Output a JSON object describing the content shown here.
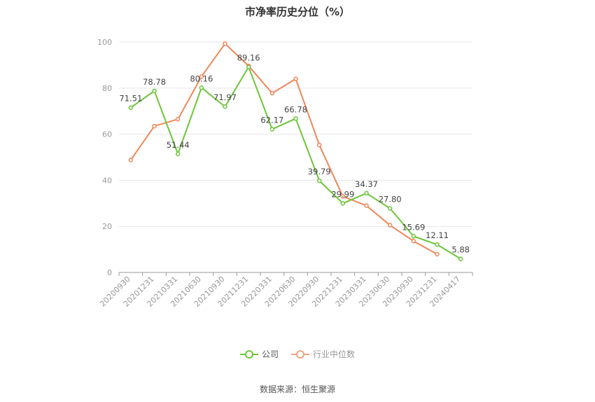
{
  "chart_data": {
    "type": "line",
    "title": "市净率历史分位（%）",
    "categories": [
      "20200930",
      "20201231",
      "20210331",
      "20210630",
      "20210930",
      "20211231",
      "20220331",
      "20220630",
      "20220930",
      "20221231",
      "20230331",
      "20230630",
      "20230930",
      "20231231",
      "20240417"
    ],
    "ylim": [
      0,
      100
    ],
    "yticks": [
      0,
      20,
      40,
      60,
      80,
      100
    ],
    "grid": true,
    "legend_position": "bottom",
    "series": [
      {
        "name": "公司",
        "color": "#6cc63a",
        "values": [
          71.51,
          78.78,
          51.44,
          80.16,
          71.97,
          89.16,
          62.17,
          66.78,
          39.79,
          29.99,
          34.37,
          27.8,
          15.69,
          12.11,
          5.88
        ],
        "labels": [
          "71.51",
          "78.78",
          "51.44",
          "80.16",
          "71.97",
          "89.16",
          "62.17",
          "66.78",
          "39.79",
          "29.99",
          "34.37",
          "27.80",
          "15.69",
          "12.11",
          "5.88"
        ]
      },
      {
        "name": "行业中位数",
        "color": "#f0875a",
        "values": [
          48.8,
          63.5,
          66.5,
          85.0,
          99.3,
          89.6,
          77.8,
          84.0,
          55.3,
          33.0,
          29.0,
          20.5,
          13.6,
          7.9,
          null
        ]
      }
    ]
  },
  "source": "数据来源：恒生聚源"
}
